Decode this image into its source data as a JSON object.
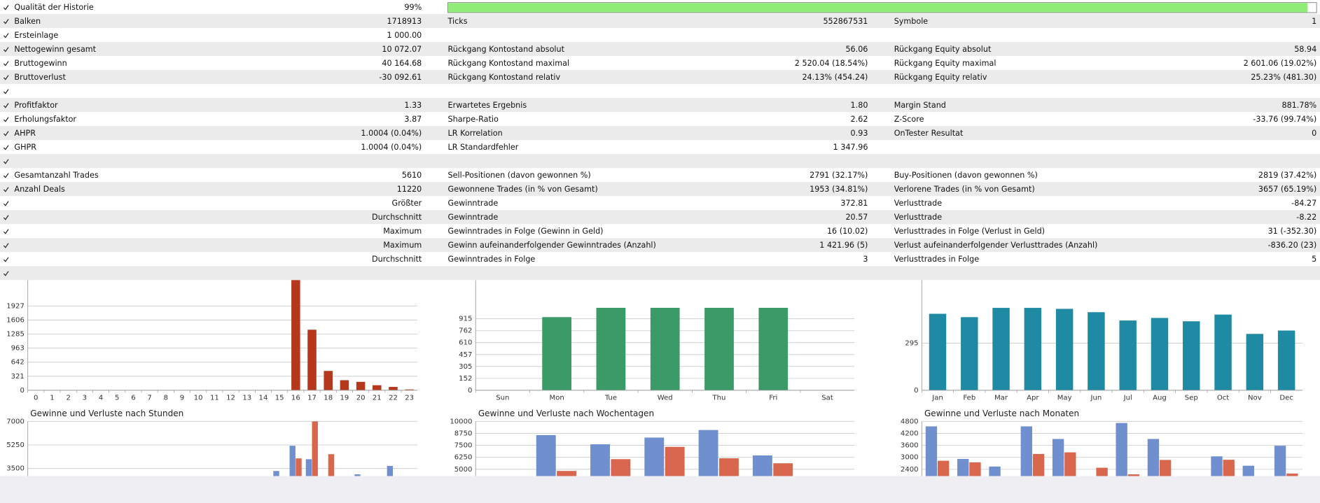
{
  "history_quality": 99,
  "rows": [
    [
      {
        "label": "Qualität der Historie",
        "value": "99%"
      }
    ],
    [
      {
        "label": "Balken",
        "value": "1718913"
      },
      {
        "label": "Ticks",
        "value": "552867531"
      },
      {
        "label": "Symbole",
        "value": "1"
      }
    ],
    [
      {
        "label": "Ersteinlage",
        "value": "1 000.00"
      }
    ],
    [
      {
        "label": "Nettogewinn gesamt",
        "value": "10 072.07"
      },
      {
        "label": "Rückgang Kontostand absolut",
        "value": "56.06"
      },
      {
        "label": "Rückgang Equity absolut",
        "value": "58.94"
      }
    ],
    [
      {
        "label": "Bruttogewinn",
        "value": "40 164.68"
      },
      {
        "label": "Rückgang Kontostand maximal",
        "value": "2 520.04 (18.54%)"
      },
      {
        "label": "Rückgang Equity maximal",
        "value": "2 601.06 (19.02%)"
      }
    ],
    [
      {
        "label": "Bruttoverlust",
        "value": "-30 092.61"
      },
      {
        "label": "Rückgang Kontostand relativ",
        "value": "24.13% (454.24)"
      },
      {
        "label": "Rückgang Equity relativ",
        "value": "25.23% (481.30)"
      }
    ],
    [],
    [
      {
        "label": "Profitfaktor",
        "value": "1.33"
      },
      {
        "label": "Erwartetes Ergebnis",
        "value": "1.80"
      },
      {
        "label": "Margin Stand",
        "value": "881.78%"
      }
    ],
    [
      {
        "label": "Erholungsfaktor",
        "value": "3.87"
      },
      {
        "label": "Sharpe-Ratio",
        "value": "2.62"
      },
      {
        "label": "Z-Score",
        "value": "-33.76 (99.74%)"
      }
    ],
    [
      {
        "label": "AHPR",
        "value": "1.0004 (0.04%)"
      },
      {
        "label": "LR Korrelation",
        "value": "0.93"
      },
      {
        "label": "OnTester Resultat",
        "value": "0"
      }
    ],
    [
      {
        "label": "GHPR",
        "value": "1.0004 (0.04%)"
      },
      {
        "label": "LR Standardfehler",
        "value": "1 347.96"
      }
    ],
    [],
    [
      {
        "label": "Gesamtanzahl Trades",
        "value": "5610"
      },
      {
        "label": "Sell-Positionen (davon gewonnen %)",
        "value": "2791 (32.17%)"
      },
      {
        "label": "Buy-Positionen (davon gewonnen %)",
        "value": "2819 (37.42%)"
      }
    ],
    [
      {
        "label": "Anzahl Deals",
        "value": "11220"
      },
      {
        "label": "Gewonnene Trades (in % von Gesamt)",
        "value": "1953 (34.81%)"
      },
      {
        "label": "Verlorene Trades (in % von Gesamt)",
        "value": "3657 (65.19%)"
      }
    ],
    [
      {
        "value": "Größter"
      },
      {
        "label": "Gewinntrade",
        "value": "372.81"
      },
      {
        "label": "Verlusttrade",
        "value": "-84.27"
      }
    ],
    [
      {
        "value": "Durchschnitt"
      },
      {
        "label": "Gewinntrade",
        "value": "20.57"
      },
      {
        "label": "Verlusttrade",
        "value": "-8.22"
      }
    ],
    [
      {
        "value": "Maximum"
      },
      {
        "label": "Gewinntrades in Folge (Gewinn in Geld)",
        "value": "16 (10.02)"
      },
      {
        "label": "Verlusttrades in Folge (Verlust in Geld)",
        "value": "31 (-352.30)"
      }
    ],
    [
      {
        "value": "Maximum"
      },
      {
        "label": "Gewinn aufeinanderfolgender Gewinntrades (Anzahl)",
        "value": "1 421.96 (5)"
      },
      {
        "label": "Verlust aufeinanderfolgender Verlusttrades (Anzahl)",
        "value": "-836.20 (23)"
      }
    ],
    [
      {
        "value": "Durchschnitt"
      },
      {
        "label": "Gewinntrades in Folge",
        "value": "3"
      },
      {
        "label": "Verlusttrades in Folge",
        "value": "5"
      }
    ],
    []
  ],
  "chart_data": [
    {
      "type": "bar",
      "categories": [
        "0",
        "1",
        "2",
        "3",
        "4",
        "5",
        "6",
        "7",
        "8",
        "9",
        "10",
        "11",
        "12",
        "13",
        "14",
        "15",
        "16",
        "17",
        "18",
        "19",
        "20",
        "21",
        "22",
        "23"
      ],
      "values": [
        0,
        0,
        0,
        0,
        0,
        0,
        0,
        0,
        0,
        0,
        0,
        0,
        0,
        0,
        0,
        0,
        2550,
        1384,
        442,
        230,
        192,
        115,
        77,
        19
      ],
      "color": "#b5381c",
      "ylim": [
        0,
        2518
      ],
      "yticks": [
        0,
        321,
        642,
        963,
        1285,
        1606,
        1927
      ],
      "grid": true
    },
    {
      "type": "bar",
      "categories": [
        "Sun",
        "Mon",
        "Tue",
        "Wed",
        "Thu",
        "Fri",
        "Sat"
      ],
      "values": [
        0,
        936,
        1055,
        1055,
        1055,
        1055,
        0
      ],
      "color": "#3a9a68",
      "ylim": [
        0,
        1410
      ],
      "yticks": [
        0,
        152,
        305,
        457,
        610,
        762,
        915
      ],
      "grid": true
    },
    {
      "type": "bar",
      "categories": [
        "Jan",
        "Feb",
        "Mar",
        "Apr",
        "May",
        "Jun",
        "Jul",
        "Aug",
        "Sep",
        "Oct",
        "Nov",
        "Dec"
      ],
      "values": [
        479,
        458,
        516,
        516,
        510,
        489,
        437,
        453,
        432,
        474,
        353,
        374
      ],
      "color": "#1f8aa3",
      "ylim": [
        0,
        690
      ],
      "yticks": [
        0,
        295
      ],
      "grid": true
    },
    {
      "type": "grouped_bar",
      "title": "Gewinne und Verluste nach Stunden",
      "series": [
        {
          "color": "#6f8fce",
          "values": [
            null,
            null,
            null,
            null,
            null,
            null,
            null,
            null,
            null,
            null,
            null,
            null,
            null,
            null,
            null,
            3312,
            5188,
            4188,
            null,
            null,
            3062,
            null,
            3688,
            null
          ]
        },
        {
          "color": "#d9674e",
          "values": [
            null,
            null,
            null,
            null,
            null,
            null,
            null,
            null,
            null,
            null,
            null,
            null,
            null,
            null,
            null,
            null,
            4250,
            7000,
            4562,
            null,
            null,
            null,
            null,
            null
          ]
        }
      ],
      "ylim": [
        2937,
        7000
      ],
      "yticks": [
        3500,
        5250,
        7000
      ],
      "grid": true
    },
    {
      "type": "grouped_bar",
      "title": "Gewinne und Verluste nach Wochentagen",
      "series": [
        {
          "color": "#6f8fce",
          "values": [
            null,
            8570,
            7610,
            8310,
            9100,
            6450,
            null
          ]
        },
        {
          "color": "#d9674e",
          "values": [
            null,
            4830,
            6060,
            7340,
            6150,
            5630,
            null
          ]
        }
      ],
      "ylim": [
        4296,
        10000
      ],
      "yticks": [
        5000,
        6250,
        7500,
        8750,
        10000
      ],
      "grid": true
    },
    {
      "type": "grouped_bar",
      "title": "Gewinne und Verluste nach Monaten",
      "series": [
        {
          "color": "#6f8fce",
          "values": [
            4550,
            2920,
            2540,
            4550,
            3920,
            null,
            4720,
            3920,
            null,
            3050,
            2580,
            3580
          ]
        },
        {
          "color": "#d9674e",
          "values": [
            2830,
            2750,
            null,
            3170,
            3250,
            2480,
            2150,
            2870,
            null,
            2880,
            null,
            2190
          ]
        }
      ],
      "ylim": [
        2064,
        4800
      ],
      "yticks": [
        2400,
        3000,
        3600,
        4200,
        4800
      ],
      "grid": true
    }
  ]
}
